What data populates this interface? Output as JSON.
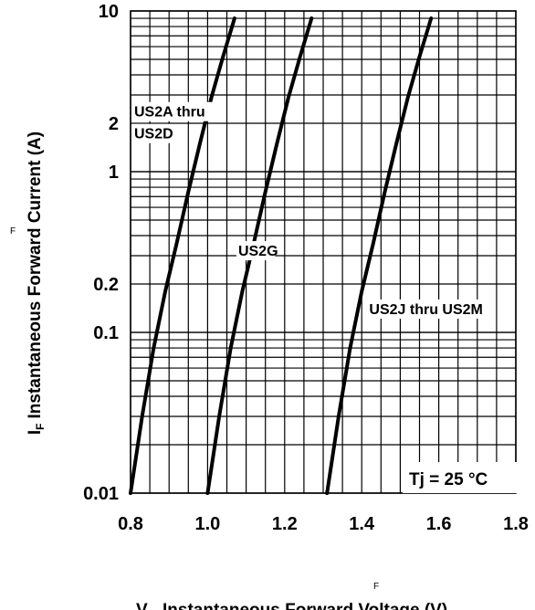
{
  "chart_data": {
    "type": "line",
    "title": "",
    "xlabel": "Instantaneous Forward Voltage (V)",
    "xlabel_symbol": "V",
    "xlabel_subscript": "F",
    "ylabel": "Instantaneous Forward Current (A)",
    "ylabel_symbol": "I",
    "ylabel_subscript": "F",
    "stray_marks": [
      "F",
      "F"
    ],
    "xlim": [
      0.8,
      1.8
    ],
    "ylim": [
      0.01,
      10
    ],
    "y_scale": "log",
    "grid": true,
    "x_ticks": [
      {
        "value": 0.8,
        "label": "0.8"
      },
      {
        "value": 1.0,
        "label": "1.0"
      },
      {
        "value": 1.2,
        "label": "1.2"
      },
      {
        "value": 1.4,
        "label": "1.4"
      },
      {
        "value": 1.6,
        "label": "1.6"
      },
      {
        "value": 1.8,
        "label": "1.8"
      }
    ],
    "y_ticks": [
      {
        "value": 0.01,
        "label": "0.01"
      },
      {
        "value": 0.1,
        "label": "0.1"
      },
      {
        "value": 0.2,
        "label": "0.2"
      },
      {
        "value": 1,
        "label": "1"
      },
      {
        "value": 2,
        "label": "2"
      },
      {
        "value": 10,
        "label": "10"
      }
    ],
    "annotation": "Tj = 25 °C",
    "series": [
      {
        "name": "US2A thru US2D",
        "label_lines": [
          "US2A thru",
          "US2D"
        ],
        "label_anchor": [
          0.8,
          2.2
        ],
        "x": [
          0.8,
          0.83,
          0.86,
          0.89,
          0.92,
          0.95,
          0.98,
          1.01,
          1.04,
          1.07
        ],
        "y": [
          0.01,
          0.03,
          0.08,
          0.18,
          0.36,
          0.75,
          1.5,
          2.9,
          5.2,
          9.0
        ]
      },
      {
        "name": "US2G",
        "label_lines": [
          "US2G"
        ],
        "label_anchor": [
          1.07,
          0.3
        ],
        "x": [
          1.0,
          1.03,
          1.06,
          1.09,
          1.12,
          1.15,
          1.18,
          1.21,
          1.24,
          1.27
        ],
        "y": [
          0.01,
          0.03,
          0.08,
          0.18,
          0.36,
          0.75,
          1.5,
          2.9,
          5.2,
          9.0
        ]
      },
      {
        "name": "US2J thru US2M",
        "label_lines": [
          "US2J thru US2M"
        ],
        "label_anchor": [
          1.41,
          0.13
        ],
        "x": [
          1.31,
          1.34,
          1.37,
          1.4,
          1.43,
          1.46,
          1.49,
          1.52,
          1.55,
          1.58
        ],
        "y": [
          0.01,
          0.03,
          0.08,
          0.18,
          0.36,
          0.75,
          1.5,
          2.9,
          5.2,
          9.0
        ]
      }
    ]
  }
}
